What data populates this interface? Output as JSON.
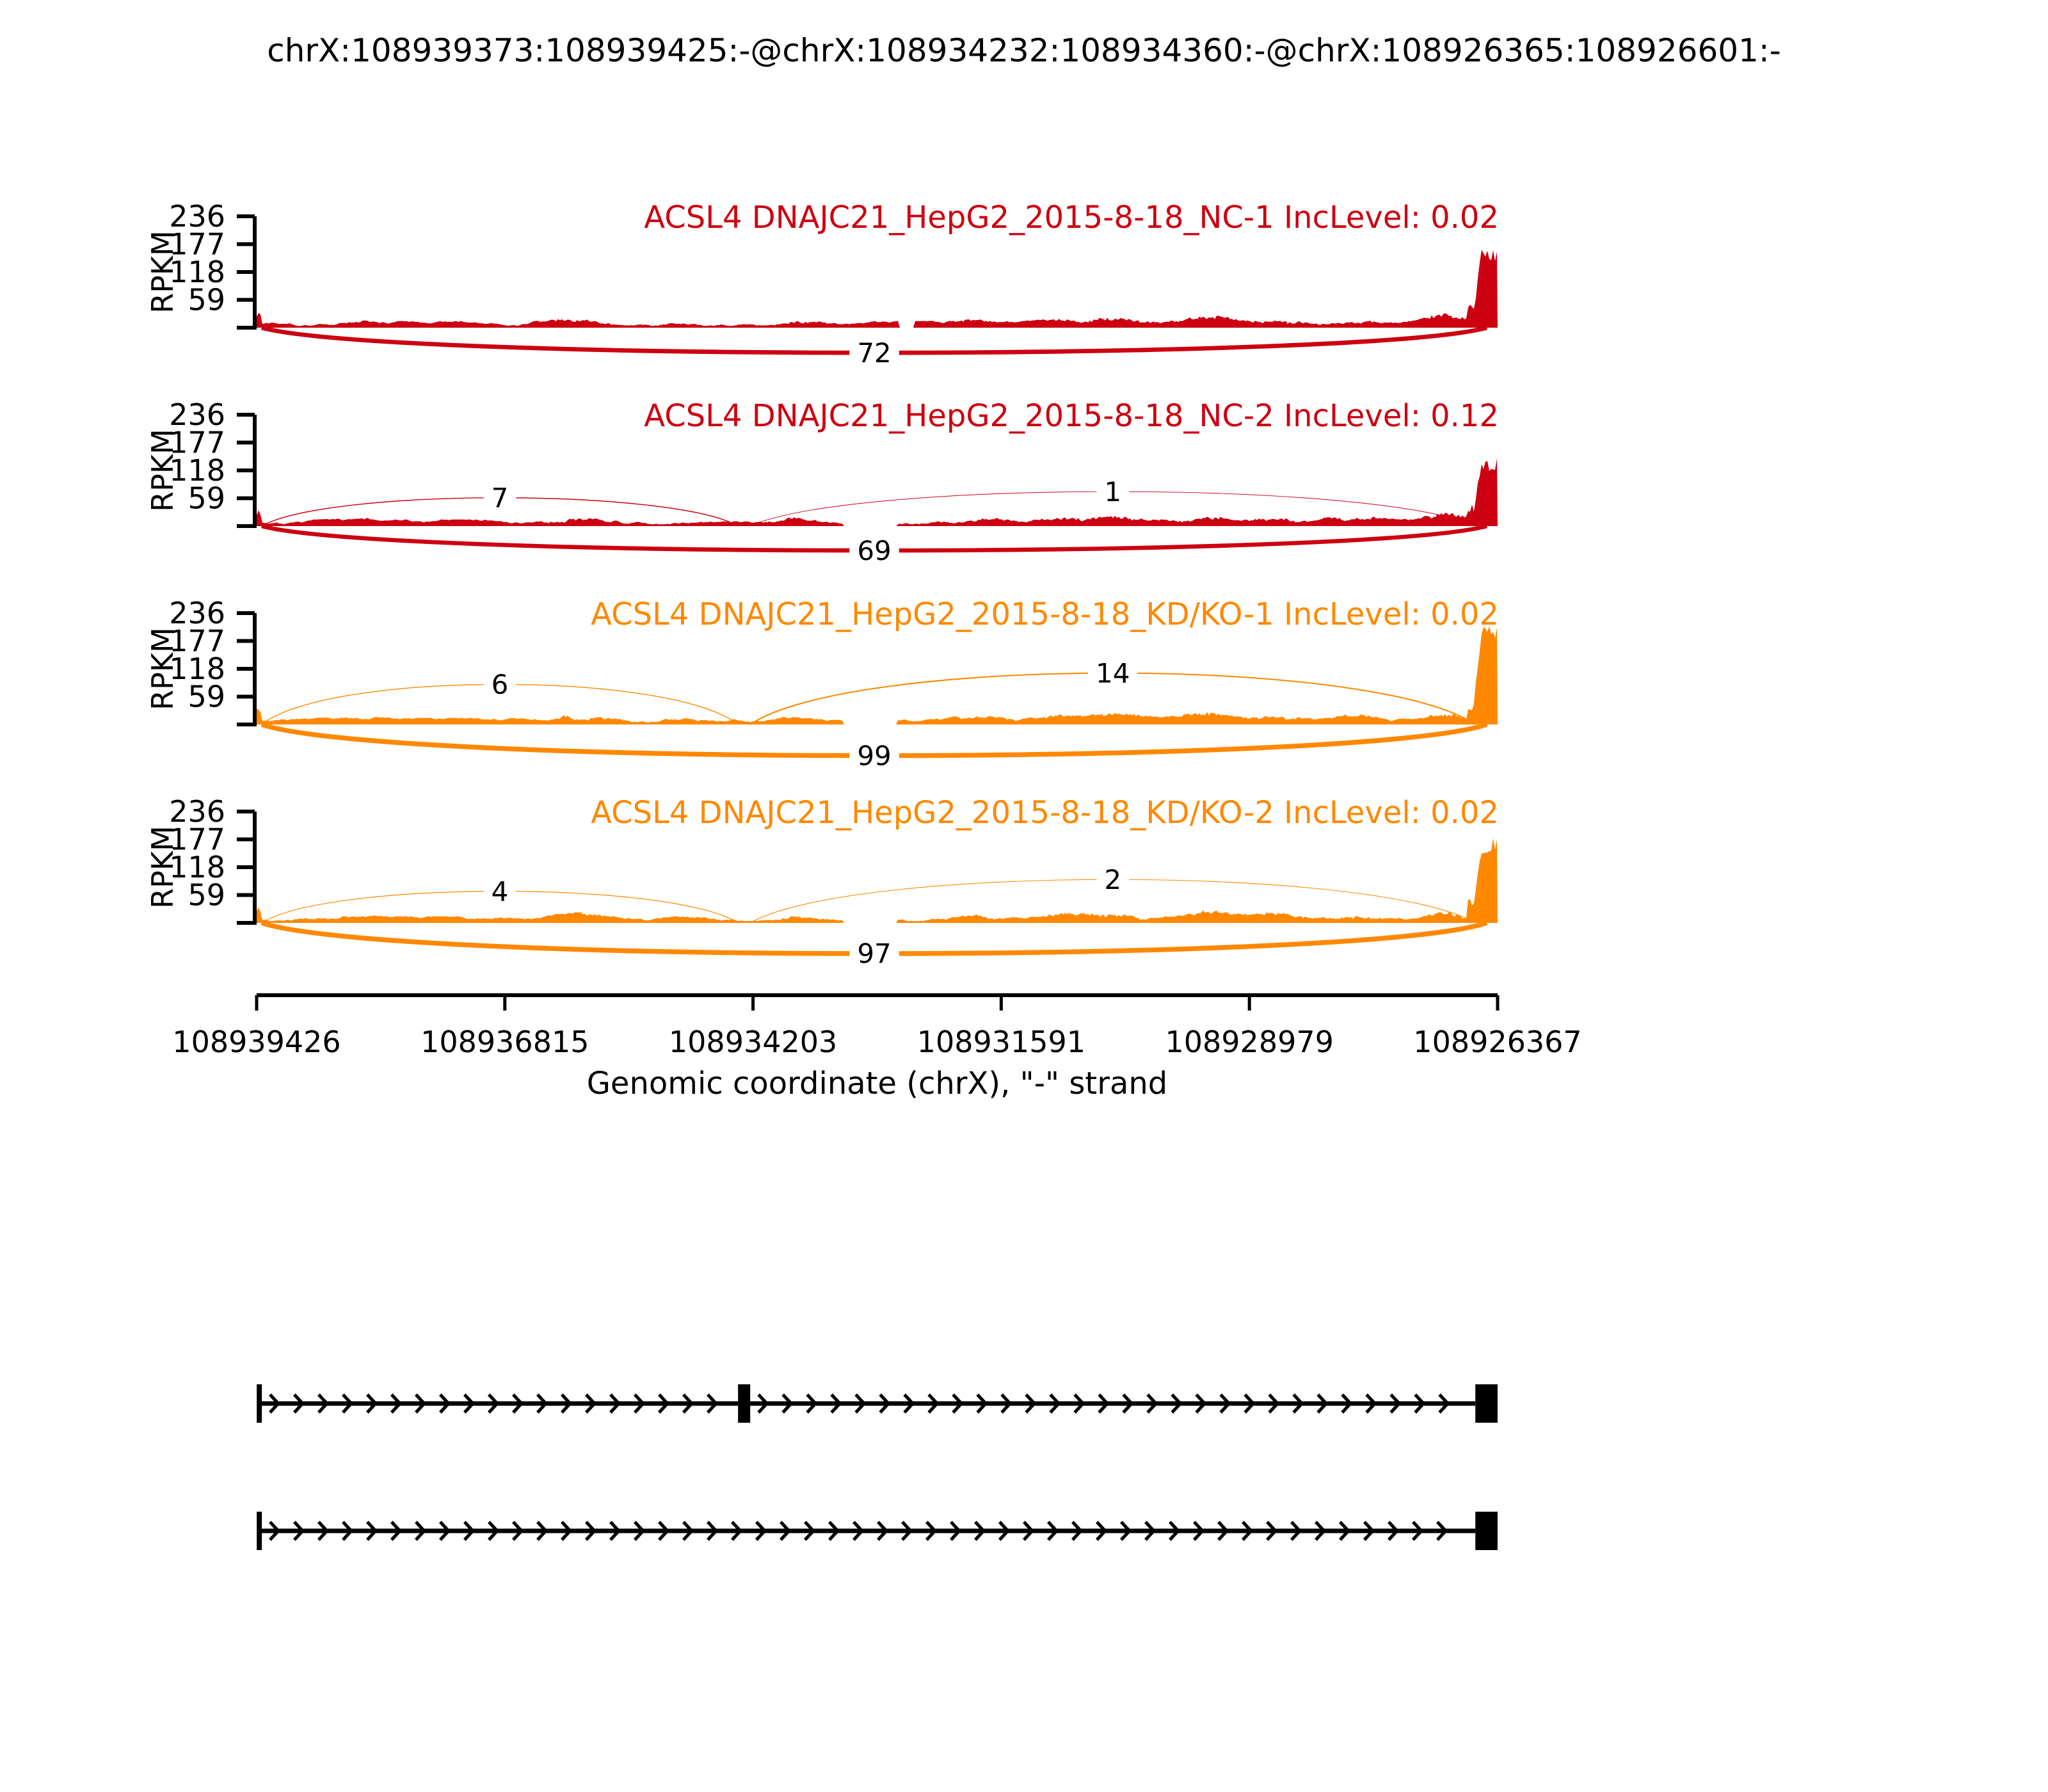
{
  "figure": {
    "title": "chrX:108939373:108939425:-@chrX:108934232:108934360:-@chrX:108926365:108926601:-"
  },
  "chart_data": {
    "type": "sashimi",
    "title": "chrX:108939373:108939425:-@chrX:108934232:108934360:-@chrX:108926365:108926601:-",
    "ylabel": "RPKM",
    "y_ticks": [
      236,
      177,
      118,
      59
    ],
    "y_max": 236,
    "x_tick_labels": [
      "108939426",
      "108936815",
      "108934203",
      "108931591",
      "108928979",
      "108926367"
    ],
    "x_axis_title": "Genomic coordinate (chrX), \"-\" strand",
    "strand": "-",
    "chrom": "chrX",
    "region_left_coord": 108939426,
    "region_right_coord": 108926367,
    "event_exons": [
      {
        "name": "upstream-exon",
        "start": 108939373,
        "end": 108939425
      },
      {
        "name": "skipped-exon",
        "start": 108934232,
        "end": 108934360
      },
      {
        "name": "downstream-exon",
        "start": 108926365,
        "end": 108926601
      }
    ],
    "tracks": [
      {
        "title": "ACSL4 DNAJC21_HepG2_2015-8-18_NC-1 IncLevel: 0.02",
        "sample": "ACSL4 DNAJC21_HepG2_2015-8-18_NC-1",
        "inc_level": "0.02",
        "color": "#CC0011",
        "peak_rpkm": 170,
        "junctions": [
          {
            "count": 72,
            "from_exon": 0,
            "to_exon": 2,
            "side": "below"
          }
        ]
      },
      {
        "title": "ACSL4 DNAJC21_HepG2_2015-8-18_NC-2 IncLevel: 0.12",
        "sample": "ACSL4 DNAJC21_HepG2_2015-8-18_NC-2",
        "inc_level": "0.12",
        "color": "#CC0011",
        "peak_rpkm": 145,
        "junctions": [
          {
            "count": 7,
            "from_exon": 0,
            "to_exon": 1,
            "side": "above",
            "apex_rpkm": 60
          },
          {
            "count": 1,
            "from_exon": 1,
            "to_exon": 2,
            "side": "above",
            "apex_rpkm": 73
          },
          {
            "count": 69,
            "from_exon": 0,
            "to_exon": 2,
            "side": "below"
          }
        ]
      },
      {
        "title": "ACSL4 DNAJC21_HepG2_2015-8-18_KD/KO-1 IncLevel: 0.02",
        "sample": "ACSL4 DNAJC21_HepG2_2015-8-18_KD/KO-1",
        "inc_level": "0.02",
        "color": "#FF8800",
        "peak_rpkm": 210,
        "junctions": [
          {
            "count": 6,
            "from_exon": 0,
            "to_exon": 1,
            "side": "above",
            "apex_rpkm": 85
          },
          {
            "count": 14,
            "from_exon": 1,
            "to_exon": 2,
            "side": "above",
            "apex_rpkm": 109
          },
          {
            "count": 99,
            "from_exon": 0,
            "to_exon": 2,
            "side": "below"
          }
        ]
      },
      {
        "title": "ACSL4 DNAJC21_HepG2_2015-8-18_KD/KO-2 IncLevel: 0.02",
        "sample": "ACSL4 DNAJC21_HepG2_2015-8-18_KD/KO-2",
        "inc_level": "0.02",
        "color": "#FF8800",
        "peak_rpkm": 180,
        "junctions": [
          {
            "count": 4,
            "from_exon": 0,
            "to_exon": 1,
            "side": "above",
            "apex_rpkm": 67
          },
          {
            "count": 2,
            "from_exon": 1,
            "to_exon": 2,
            "side": "above",
            "apex_rpkm": 92
          },
          {
            "count": 97,
            "from_exon": 0,
            "to_exon": 2,
            "side": "below"
          }
        ]
      }
    ],
    "transcripts": [
      {
        "exons": [
          0,
          1,
          2
        ]
      },
      {
        "exons": [
          0,
          2
        ]
      }
    ]
  }
}
